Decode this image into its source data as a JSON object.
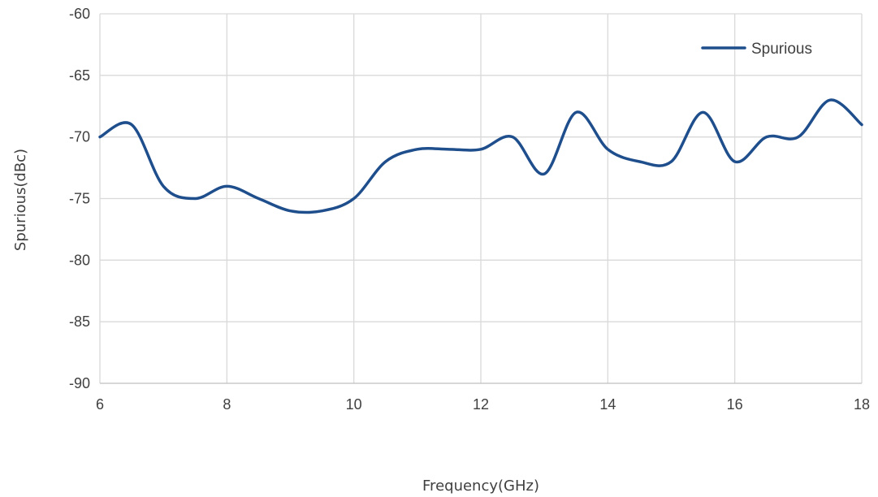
{
  "chart_data": {
    "type": "line",
    "xlabel": "Frequency(GHz)",
    "ylabel": "Spurious(dBc)",
    "xlim": [
      6,
      18
    ],
    "ylim": [
      -90,
      -60
    ],
    "x_ticks": [
      6,
      8,
      10,
      12,
      14,
      16,
      18
    ],
    "y_ticks": [
      -60,
      -65,
      -70,
      -75,
      -80,
      -85,
      -90
    ],
    "grid": true,
    "legend": "top-right",
    "series": [
      {
        "name": "Spurious",
        "color": "#1f4e8c",
        "x": [
          6,
          6.5,
          7,
          7.5,
          8,
          8.5,
          9,
          9.5,
          10,
          10.5,
          11,
          11.5,
          12,
          12.5,
          13,
          13.5,
          14,
          14.5,
          15,
          15.5,
          16,
          16.5,
          17,
          17.5,
          18
        ],
        "y": [
          -70,
          -69,
          -74,
          -75,
          -74,
          -75,
          -76,
          -76,
          -75,
          -72,
          -71,
          -71,
          -71,
          -70,
          -73,
          -68,
          -71,
          -72,
          -72,
          -68,
          -72,
          -70,
          -70,
          -67,
          -69
        ]
      }
    ]
  }
}
